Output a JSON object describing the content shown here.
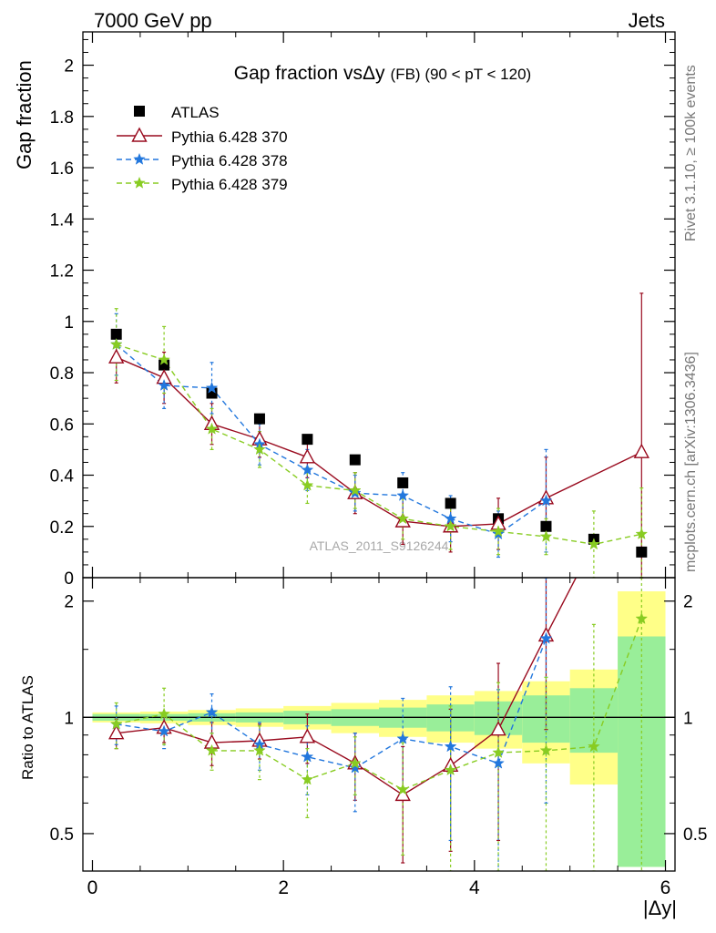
{
  "header": {
    "left": "7000 GeV pp",
    "right": "Jets"
  },
  "side": {
    "rivet": "Rivet 3.1.10, ≥ 100k events",
    "mcplots": "mcplots.cern.ch [arXiv:1306.3436]"
  },
  "watermark": "ATLAS_2011_S9126244",
  "chart_data": {
    "type": "line",
    "title": "Gap fraction vsΔy (FB) (90 < pT < 120)",
    "title_main": "Gap fraction vs",
    "title_sym": "Δy",
    "title_tail": "(FB) (90 < pT < 120)",
    "xlabel": "|Δy|",
    "ylabel": "Gap fraction",
    "ratio_ylabel": "Ratio to ATLAS",
    "xlim": [
      -0.1,
      6.1
    ],
    "ylim": [
      0,
      2.13
    ],
    "ratio_ylim": [
      0.4,
      2.3
    ],
    "ratio_log": true,
    "x_ticks": [
      "0",
      "2",
      "4",
      "6"
    ],
    "y_ticks": [
      "0",
      "0.2",
      "0.4",
      "0.6",
      "0.8",
      "1",
      "1.2",
      "1.4",
      "1.6",
      "1.8",
      "2"
    ],
    "ratio_ticks": [
      "0.5",
      "1",
      "2"
    ],
    "legend_position": "top-left",
    "x": [
      0.25,
      0.75,
      1.25,
      1.75,
      2.25,
      2.75,
      3.25,
      3.75,
      4.25,
      4.75,
      5.25,
      5.75
    ],
    "series": [
      {
        "name": "ATLAS",
        "color": "#000000",
        "marker": "square",
        "values": [
          0.95,
          0.83,
          0.72,
          0.62,
          0.54,
          0.46,
          0.37,
          0.29,
          0.23,
          0.2,
          0.15,
          0.1
        ]
      },
      {
        "name": "Pythia 6.428 370",
        "color": "#990a1e",
        "marker": "triangle",
        "dash": "solid",
        "values": [
          0.86,
          0.78,
          0.6,
          0.54,
          0.47,
          0.33,
          0.22,
          0.2,
          0.21,
          0.31,
          null,
          0.49
        ],
        "errors": [
          0.1,
          0.1,
          0.08,
          0.07,
          0.08,
          0.08,
          0.09,
          0.1,
          0.1,
          0.16,
          null,
          0.62
        ],
        "ratio": [
          0.91,
          0.94,
          0.86,
          0.87,
          0.89,
          0.76,
          0.63,
          0.75,
          0.93,
          1.63,
          null,
          4.9
        ],
        "ratio_errors": [
          0.08,
          0.08,
          0.11,
          0.09,
          0.13,
          0.15,
          0.21,
          0.3,
          0.45,
          0.7,
          null,
          1.2
        ]
      },
      {
        "name": "Pythia 6.428 378",
        "color": "#2277dd",
        "marker": "star",
        "dash": "dashed",
        "values": [
          0.91,
          0.75,
          0.74,
          0.52,
          0.42,
          0.33,
          0.32,
          0.23,
          0.17,
          0.3,
          null,
          null
        ],
        "errors": [
          0.12,
          0.09,
          0.1,
          0.08,
          0.08,
          0.07,
          0.09,
          0.09,
          0.09,
          0.2,
          null,
          null
        ],
        "ratio": [
          0.96,
          0.92,
          1.03,
          0.85,
          0.79,
          0.74,
          0.88,
          0.84,
          0.76,
          1.6,
          null,
          null
        ],
        "ratio_errors": [
          0.11,
          0.09,
          0.12,
          0.12,
          0.16,
          0.17,
          0.24,
          0.36,
          0.42,
          1.0,
          null,
          null
        ]
      },
      {
        "name": "Pythia 6.428 379",
        "color": "#88cc22",
        "marker": "star",
        "dash": "dashed",
        "values": [
          0.91,
          0.85,
          0.58,
          0.5,
          0.36,
          0.34,
          0.23,
          0.2,
          0.18,
          0.16,
          0.13,
          0.17
        ],
        "errors": [
          0.14,
          0.13,
          0.08,
          0.07,
          0.07,
          0.07,
          0.08,
          0.09,
          0.09,
          0.07,
          0.13,
          0.18
        ],
        "ratio": [
          0.96,
          1.02,
          0.82,
          0.82,
          0.69,
          0.76,
          0.65,
          0.73,
          0.81,
          0.82,
          0.84,
          1.8
        ],
        "ratio_errors": [
          0.13,
          0.17,
          0.09,
          0.13,
          0.14,
          0.13,
          0.21,
          0.34,
          0.42,
          0.45,
          0.9,
          2.0
        ]
      }
    ],
    "ratio_bands": {
      "inner_color": "#99ee99",
      "outer_color": "#ffff88",
      "inner": [
        0.02,
        0.02,
        0.025,
        0.03,
        0.04,
        0.05,
        0.06,
        0.08,
        0.1,
        0.14,
        0.19,
        0.62
      ],
      "outer": [
        0.03,
        0.035,
        0.045,
        0.055,
        0.07,
        0.09,
        0.11,
        0.14,
        0.17,
        0.24,
        0.33,
        1.12
      ]
    }
  }
}
